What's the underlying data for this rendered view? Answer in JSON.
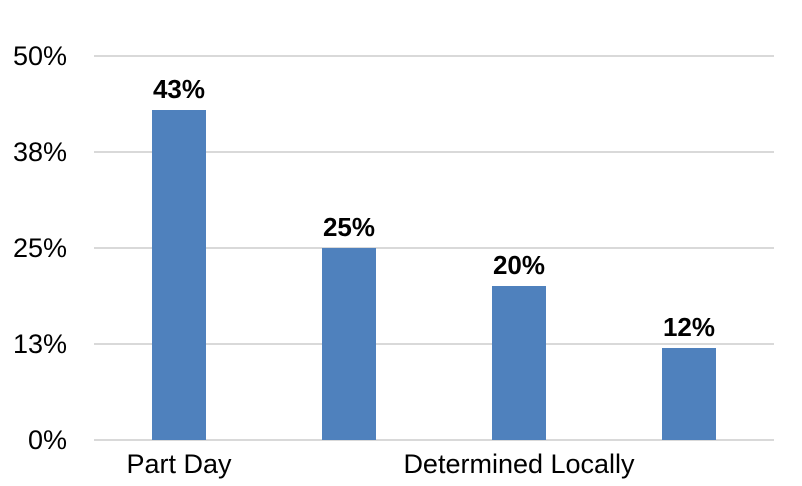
{
  "chart_data": {
    "type": "bar",
    "categories": [
      "Part Day",
      "",
      "Determined Locally",
      ""
    ],
    "values": [
      43,
      25,
      20,
      12
    ],
    "data_labels": [
      "43%",
      "25%",
      "20%",
      "12%"
    ],
    "y_axis": {
      "ylim": [
        0,
        50
      ],
      "ticks": [
        {
          "value": 0,
          "label": "0%"
        },
        {
          "value": 12.5,
          "label": "13%"
        },
        {
          "value": 25,
          "label": "25%"
        },
        {
          "value": 37.5,
          "label": "38%"
        },
        {
          "value": 50,
          "label": "50%"
        }
      ]
    },
    "grid": true,
    "legend": "none",
    "title": "",
    "colors": {
      "bar": "#4F81BD",
      "gridline": "#D9D9D9",
      "text": "#000000",
      "background": "#FFFFFF"
    }
  }
}
